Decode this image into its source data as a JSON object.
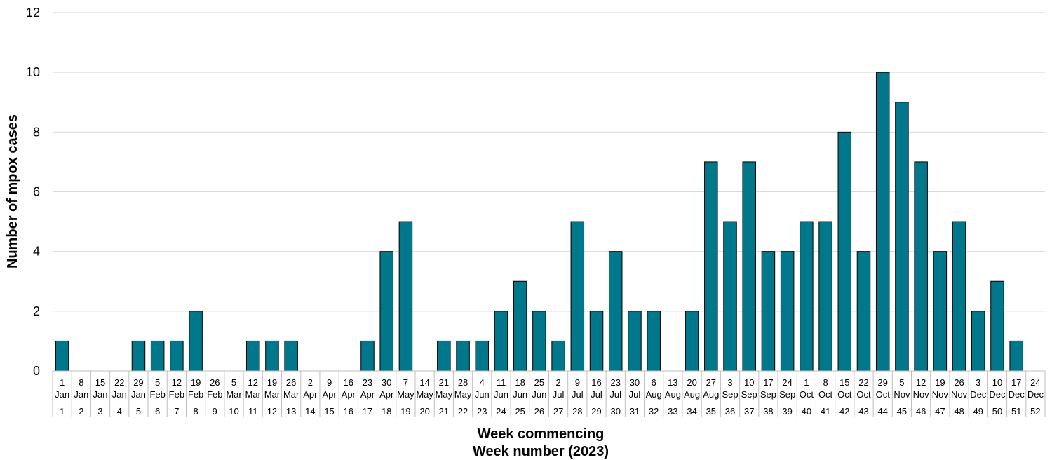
{
  "chart_data": {
    "type": "bar",
    "ylabel": "Number of mpox cases",
    "xlabel": "Week commencing",
    "xlabel2": "Week number (2023)",
    "ylim": [
      0,
      12
    ],
    "yticks": [
      0,
      2,
      4,
      6,
      8,
      10,
      12
    ],
    "grid": true,
    "bar_color": "#00778A",
    "categories": [
      {
        "day": "1",
        "month": "Jan",
        "week": "1"
      },
      {
        "day": "8",
        "month": "Jan",
        "week": "2"
      },
      {
        "day": "15",
        "month": "Jan",
        "week": "3"
      },
      {
        "day": "22",
        "month": "Jan",
        "week": "4"
      },
      {
        "day": "29",
        "month": "Jan",
        "week": "5"
      },
      {
        "day": "5",
        "month": "Feb",
        "week": "6"
      },
      {
        "day": "12",
        "month": "Feb",
        "week": "7"
      },
      {
        "day": "19",
        "month": "Feb",
        "week": "8"
      },
      {
        "day": "26",
        "month": "Feb",
        "week": "9"
      },
      {
        "day": "5",
        "month": "Mar",
        "week": "10"
      },
      {
        "day": "12",
        "month": "Mar",
        "week": "11"
      },
      {
        "day": "19",
        "month": "Mar",
        "week": "12"
      },
      {
        "day": "26",
        "month": "Mar",
        "week": "13"
      },
      {
        "day": "2",
        "month": "Apr",
        "week": "14"
      },
      {
        "day": "9",
        "month": "Apr",
        "week": "15"
      },
      {
        "day": "16",
        "month": "Apr",
        "week": "16"
      },
      {
        "day": "23",
        "month": "Apr",
        "week": "17"
      },
      {
        "day": "30",
        "month": "Apr",
        "week": "18"
      },
      {
        "day": "7",
        "month": "May",
        "week": "19"
      },
      {
        "day": "14",
        "month": "May",
        "week": "20"
      },
      {
        "day": "21",
        "month": "May",
        "week": "21"
      },
      {
        "day": "28",
        "month": "May",
        "week": "22"
      },
      {
        "day": "4",
        "month": "Jun",
        "week": "23"
      },
      {
        "day": "11",
        "month": "Jun",
        "week": "24"
      },
      {
        "day": "18",
        "month": "Jun",
        "week": "25"
      },
      {
        "day": "25",
        "month": "Jun",
        "week": "26"
      },
      {
        "day": "2",
        "month": "Jul",
        "week": "27"
      },
      {
        "day": "9",
        "month": "Jul",
        "week": "28"
      },
      {
        "day": "16",
        "month": "Jul",
        "week": "29"
      },
      {
        "day": "23",
        "month": "Jul",
        "week": "30"
      },
      {
        "day": "30",
        "month": "Jul",
        "week": "31"
      },
      {
        "day": "6",
        "month": "Aug",
        "week": "32"
      },
      {
        "day": "13",
        "month": "Aug",
        "week": "33"
      },
      {
        "day": "20",
        "month": "Aug",
        "week": "34"
      },
      {
        "day": "27",
        "month": "Aug",
        "week": "35"
      },
      {
        "day": "3",
        "month": "Sep",
        "week": "36"
      },
      {
        "day": "10",
        "month": "Sep",
        "week": "37"
      },
      {
        "day": "17",
        "month": "Sep",
        "week": "38"
      },
      {
        "day": "24",
        "month": "Sep",
        "week": "39"
      },
      {
        "day": "1",
        "month": "Oct",
        "week": "40"
      },
      {
        "day": "8",
        "month": "Oct",
        "week": "41"
      },
      {
        "day": "15",
        "month": "Oct",
        "week": "42"
      },
      {
        "day": "22",
        "month": "Oct",
        "week": "43"
      },
      {
        "day": "29",
        "month": "Oct",
        "week": "44"
      },
      {
        "day": "5",
        "month": "Nov",
        "week": "45"
      },
      {
        "day": "12",
        "month": "Nov",
        "week": "46"
      },
      {
        "day": "19",
        "month": "Nov",
        "week": "47"
      },
      {
        "day": "26",
        "month": "Nov",
        "week": "48"
      },
      {
        "day": "3",
        "month": "Dec",
        "week": "49"
      },
      {
        "day": "10",
        "month": "Dec",
        "week": "50"
      },
      {
        "day": "17",
        "month": "Dec",
        "week": "51"
      },
      {
        "day": "24",
        "month": "Dec",
        "week": "52"
      }
    ],
    "values": [
      1,
      0,
      0,
      0,
      1,
      1,
      1,
      2,
      0,
      0,
      1,
      1,
      1,
      0,
      0,
      0,
      1,
      4,
      5,
      0,
      1,
      1,
      1,
      2,
      3,
      2,
      1,
      5,
      2,
      4,
      2,
      2,
      0,
      2,
      7,
      5,
      7,
      4,
      4,
      5,
      5,
      8,
      4,
      10,
      9,
      7,
      4,
      5,
      2,
      3,
      1,
      0
    ]
  }
}
